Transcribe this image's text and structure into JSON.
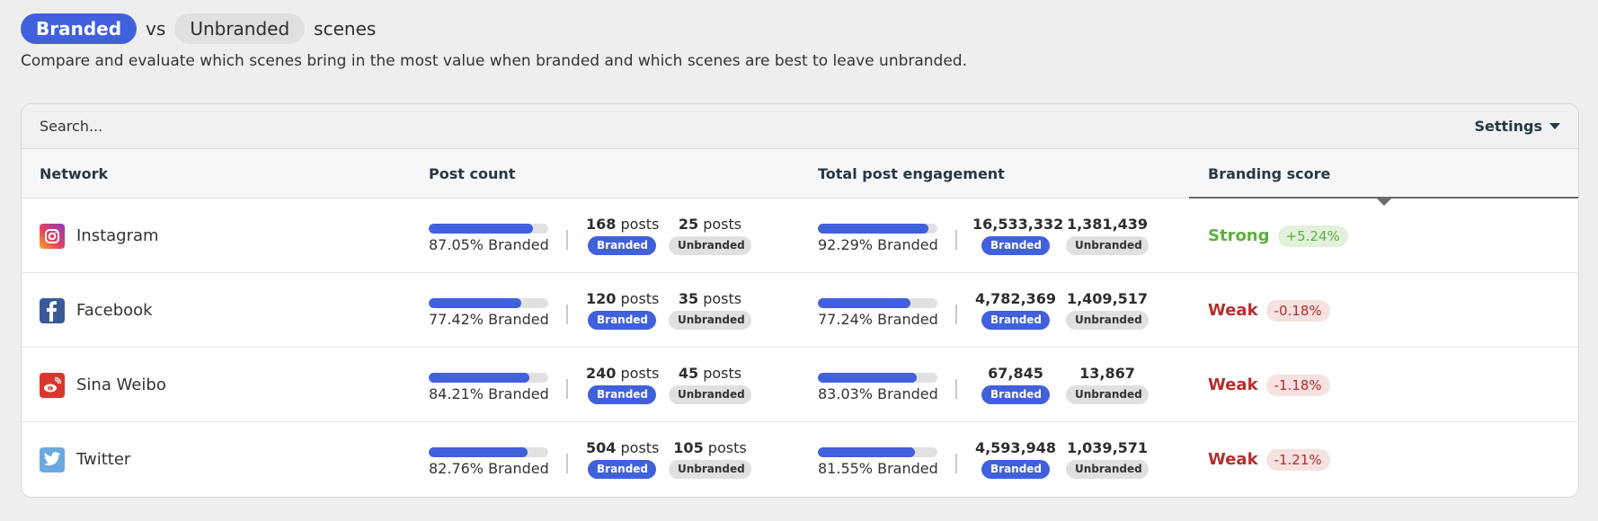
{
  "header": {
    "branded_pill": "Branded",
    "vs": "vs",
    "unbranded_pill": "Unbranded",
    "suffix": "scenes",
    "description": "Compare and evaluate which scenes bring in the most value when branded and which scenes are best to leave unbranded."
  },
  "toolbar": {
    "search_placeholder": "Search...",
    "settings_label": "Settings"
  },
  "table": {
    "columns": [
      "Network",
      "Post count",
      "Total post engagement",
      "Branding score"
    ],
    "active_sort_column": "Branding score",
    "branded_badge": "Branded",
    "unbranded_badge": "Unbranded",
    "posts_unit": "posts",
    "rows": [
      {
        "network": "Instagram",
        "icon": "instagram-icon",
        "post_pct": 87.05,
        "post_pct_label": "87.05% Branded",
        "branded_posts": "168",
        "unbranded_posts": "25",
        "eng_pct": 92.29,
        "eng_pct_label": "92.29% Branded",
        "branded_engagement": "16,533,332",
        "unbranded_engagement": "1,381,439",
        "score_label": "Strong",
        "score_change": "+5.24%",
        "score_type": "strong"
      },
      {
        "network": "Facebook",
        "icon": "facebook-icon",
        "post_pct": 77.42,
        "post_pct_label": "77.42% Branded",
        "branded_posts": "120",
        "unbranded_posts": "35",
        "eng_pct": 77.24,
        "eng_pct_label": "77.24% Branded",
        "branded_engagement": "4,782,369",
        "unbranded_engagement": "1,409,517",
        "score_label": "Weak",
        "score_change": "-0.18%",
        "score_type": "weak"
      },
      {
        "network": "Sina Weibo",
        "icon": "weibo-icon",
        "post_pct": 84.21,
        "post_pct_label": "84.21% Branded",
        "branded_posts": "240",
        "unbranded_posts": "45",
        "eng_pct": 83.03,
        "eng_pct_label": "83.03% Branded",
        "branded_engagement": "67,845",
        "unbranded_engagement": "13,867",
        "score_label": "Weak",
        "score_change": "-1.18%",
        "score_type": "weak"
      },
      {
        "network": "Twitter",
        "icon": "twitter-icon",
        "post_pct": 82.76,
        "post_pct_label": "82.76% Branded",
        "branded_posts": "504",
        "unbranded_posts": "105",
        "eng_pct": 81.55,
        "eng_pct_label": "81.55% Branded",
        "branded_engagement": "4,593,948",
        "unbranded_engagement": "1,039,571",
        "score_label": "Weak",
        "score_change": "-1.21%",
        "score_type": "weak"
      }
    ]
  },
  "colors": {
    "accent": "#4160dc",
    "strong": "#5ab03d",
    "weak": "#b72d2d",
    "bar_track": "#e1e1e1"
  }
}
